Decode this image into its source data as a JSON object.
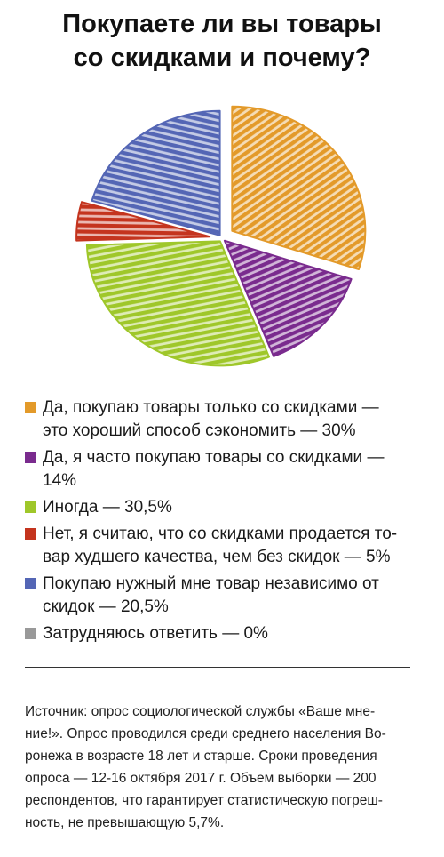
{
  "title": {
    "line1": "Покупаете ли вы товары",
    "line2": "со скидками и почему?"
  },
  "chart_data": {
    "type": "pie",
    "title": "Покупаете ли вы товары со скидками и почему?",
    "unit": "%",
    "start_angle_deg": 0,
    "direction": "clockwise",
    "slices": [
      {
        "label": "Да, покупаю товары только со скидками — это хороший способ сэкономить",
        "value": 30,
        "color": "#e39a2a",
        "exploded": true
      },
      {
        "label": "Да, я часто покупаю товары со скидками",
        "value": 14,
        "color": "#7a2b8e",
        "exploded": false
      },
      {
        "label": "Иногда",
        "value": 30.5,
        "color": "#9fc72a",
        "exploded": false
      },
      {
        "label": "Нет, я считаю, что со скидками продается товар худшего качества, чем без скидок",
        "value": 5,
        "color": "#c4341e",
        "exploded": true
      },
      {
        "label": "Покупаю нужный мне товар независимо от скидок",
        "value": 20.5,
        "color": "#5466b5",
        "exploded": false
      },
      {
        "label": "Затрудняюсь ответить",
        "value": 0,
        "color": "#999999",
        "exploded": false
      }
    ]
  },
  "legend": [
    {
      "text": "Да, покупаю товары только со скидками —\nэто хороший способ сэкономить — 30%",
      "color": "#e39a2a",
      "icon": "square-swatch"
    },
    {
      "text": "Да, я часто покупаю товары со скидками —\n14%",
      "color": "#7a2b8e",
      "icon": "square-swatch"
    },
    {
      "text": "Иногда — 30,5%",
      "color": "#9fc72a",
      "icon": "square-swatch"
    },
    {
      "text": "Нет, я считаю, что со скидками продается то-\nвар худшего качества, чем без скидок — 5%",
      "color": "#c4341e",
      "icon": "square-swatch"
    },
    {
      "text": "Покупаю нужный мне товар независимо от\nскидок — 20,5%",
      "color": "#5466b5",
      "icon": "square-swatch"
    },
    {
      "text": "Затрудняюсь ответить — 0%",
      "color": "#999999",
      "icon": "square-swatch"
    }
  ],
  "source": "Источник: опрос социологической службы «Ваше мне-\nние!». Опрос проводился среди среднего населения Во-\nронежа в возрасте 18 лет и старше. Сроки проведения\nопроса — 12-16 октября 2017 г. Объем выборки — 200\nреспондентов, что гарантирует статистическую погреш-\nность, не превышающую 5,7%."
}
